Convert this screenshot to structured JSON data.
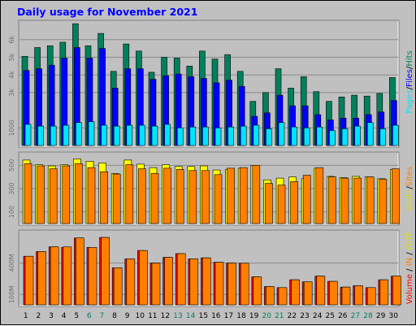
{
  "chart_data": [
    {
      "type": "bar",
      "title": "Daily usage for November 2021",
      "categories": [
        "1",
        "2",
        "3",
        "4",
        "5",
        "6",
        "7",
        "8",
        "9",
        "10",
        "11",
        "12",
        "13",
        "14",
        "15",
        "16",
        "17",
        "18",
        "19",
        "20",
        "21",
        "22",
        "23",
        "24",
        "25",
        "26",
        "27",
        "28",
        "29",
        "30"
      ],
      "weekend_days": [
        "6",
        "7",
        "13",
        "14",
        "20",
        "21",
        "27",
        "28"
      ],
      "ylim": [
        0,
        7000
      ],
      "y_ticks": [
        {
          "label": "1000",
          "value": 1000
        },
        {
          "label": "3k",
          "value": 3000
        },
        {
          "label": "4k",
          "value": 4000
        },
        {
          "label": "5k",
          "value": 5000
        },
        {
          "label": "6k",
          "value": 6000
        }
      ],
      "series": [
        {
          "name": "Hits",
          "color": "#00805c",
          "values": [
            5050,
            5550,
            5650,
            5850,
            6900,
            5650,
            6350,
            4200,
            5750,
            5350,
            4150,
            5000,
            4950,
            4500,
            5350,
            4900,
            5150,
            4200,
            2500,
            3000,
            4350,
            3250,
            3900,
            3050,
            2500,
            2750,
            2850,
            2800,
            2950,
            3850
          ]
        },
        {
          "name": "Files",
          "color": "#0000ff",
          "values": [
            4250,
            4350,
            4550,
            4950,
            5550,
            4950,
            5500,
            3250,
            4350,
            4350,
            3750,
            3950,
            4050,
            3900,
            3800,
            3550,
            3700,
            3350,
            1650,
            1850,
            2850,
            2250,
            2250,
            1750,
            1450,
            1550,
            1550,
            1750,
            1900,
            2550
          ]
        },
        {
          "name": "Pages",
          "color": "#00e4ff",
          "values": [
            1200,
            1100,
            1100,
            1150,
            1300,
            1350,
            1150,
            1100,
            1150,
            1150,
            1100,
            1200,
            1000,
            1050,
            1050,
            1000,
            1050,
            1100,
            1150,
            950,
            1300,
            1050,
            1000,
            1050,
            850,
            950,
            1100,
            1300,
            950,
            1150
          ]
        }
      ],
      "legend": "Pages / Files / Hits"
    },
    {
      "type": "bar",
      "categories": [
        "1",
        "2",
        "3",
        "4",
        "5",
        "6",
        "7",
        "8",
        "9",
        "10",
        "11",
        "12",
        "13",
        "14",
        "15",
        "16",
        "17",
        "18",
        "19",
        "20",
        "21",
        "22",
        "23",
        "24",
        "25",
        "26",
        "27",
        "28",
        "29",
        "30"
      ],
      "ylim": [
        0,
        600
      ],
      "y_ticks": [
        {
          "label": "100",
          "value": 100
        },
        {
          "label": "300",
          "value": 300
        },
        {
          "label": "500",
          "value": 500
        }
      ],
      "series": [
        {
          "name": "Visits",
          "color": "#ffff00",
          "values": [
            545,
            505,
            495,
            505,
            555,
            535,
            520,
            430,
            545,
            510,
            480,
            505,
            490,
            490,
            495,
            460,
            465,
            475,
            500,
            375,
            390,
            400,
            385,
            475,
            405,
            395,
            405,
            400,
            385,
            465
          ]
        },
        {
          "name": "Sites",
          "color": "#ff8000",
          "values": [
            515,
            495,
            470,
            495,
            515,
            480,
            445,
            425,
            505,
            470,
            430,
            475,
            465,
            455,
            455,
            420,
            475,
            480,
            500,
            345,
            330,
            360,
            415,
            480,
            400,
            390,
            390,
            400,
            380,
            470
          ]
        }
      ],
      "legend": "Visits / Sites"
    },
    {
      "type": "bar",
      "categories": [
        "1",
        "2",
        "3",
        "4",
        "5",
        "6",
        "7",
        "8",
        "9",
        "10",
        "11",
        "12",
        "13",
        "14",
        "15",
        "16",
        "17",
        "18",
        "19",
        "20",
        "21",
        "22",
        "23",
        "24",
        "25",
        "26",
        "27",
        "28",
        "29",
        "30"
      ],
      "ylim": [
        0,
        700
      ],
      "y_ticks": [
        {
          "label": "100M",
          "value": 100
        },
        {
          "label": "400M",
          "value": 400
        }
      ],
      "series": [
        {
          "name": "IN",
          "color": "#ff8000",
          "values": [
            465,
            510,
            555,
            555,
            640,
            550,
            645,
            355,
            440,
            520,
            400,
            455,
            490,
            440,
            450,
            408,
            400,
            398,
            268,
            175,
            165,
            240,
            220,
            275,
            225,
            170,
            183,
            165,
            240,
            275
          ]
        },
        {
          "name": "OUT",
          "color": "#ffff00",
          "values": [
            0,
            0,
            0,
            0,
            0,
            0,
            0,
            0,
            0,
            0,
            0,
            0,
            0,
            0,
            0,
            0,
            0,
            0,
            0,
            0,
            0,
            0,
            0,
            0,
            0,
            0,
            0,
            0,
            0,
            0
          ]
        },
        {
          "name": "Volume",
          "color": "#ff0000",
          "values": [
            465,
            510,
            555,
            550,
            640,
            550,
            645,
            355,
            440,
            520,
            400,
            455,
            490,
            440,
            450,
            408,
            400,
            398,
            268,
            175,
            165,
            240,
            220,
            275,
            225,
            170,
            183,
            165,
            240,
            275
          ]
        }
      ],
      "legend": "Volume / IN / OUT"
    }
  ]
}
